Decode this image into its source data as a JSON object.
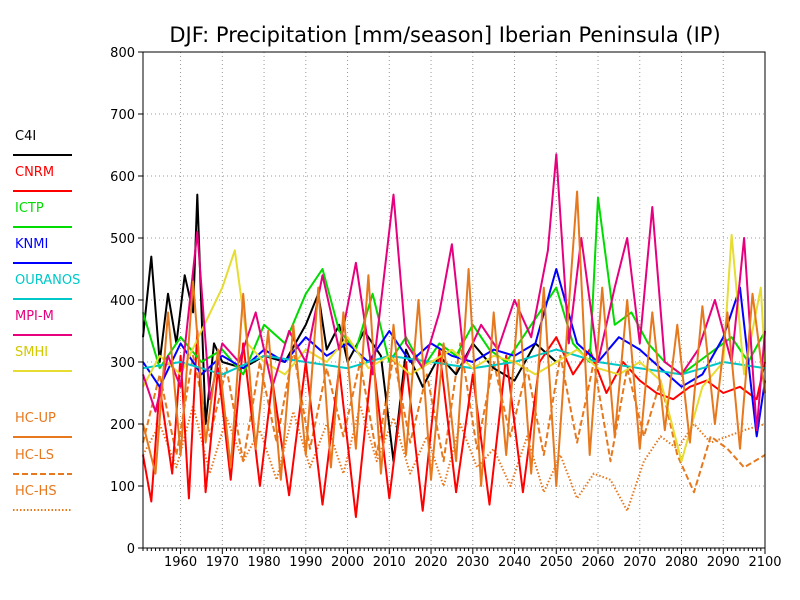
{
  "chart_data": {
    "type": "line",
    "title": "DJF: Precipitation [mm/season] Iberian Peninsula (IP)",
    "xlabel": "",
    "ylabel": "",
    "xlim": [
      1951,
      2100
    ],
    "ylim": [
      0,
      800
    ],
    "x_ticks": [
      1960,
      1970,
      1980,
      1990,
      2000,
      2010,
      2020,
      2030,
      2040,
      2050,
      2060,
      2070,
      2080,
      2090,
      2100
    ],
    "y_ticks": [
      0,
      100,
      200,
      300,
      400,
      500,
      600,
      700,
      800
    ],
    "grid": true,
    "legend_position": "left",
    "series": [
      {
        "name": "C4I",
        "color": "#000000",
        "style": "solid",
        "x": [
          1951,
          1953,
          1955,
          1957,
          1959,
          1961,
          1963,
          1964,
          1966,
          1968,
          1970,
          1975,
          1980,
          1985,
          1990,
          1993,
          1995,
          1998,
          2000,
          2004,
          2008,
          2011,
          2014,
          2018,
          2022,
          2026,
          2030,
          2035,
          2040,
          2045,
          2050
        ],
        "y": [
          340,
          470,
          300,
          410,
          330,
          440,
          380,
          570,
          200,
          330,
          300,
          290,
          310,
          300,
          360,
          410,
          320,
          360,
          300,
          350,
          310,
          140,
          320,
          260,
          310,
          280,
          330,
          290,
          270,
          330,
          300
        ]
      },
      {
        "name": "CNRM",
        "color": "#ff0000",
        "style": "solid",
        "x": [
          1951,
          1953,
          1955,
          1958,
          1960,
          1962,
          1964,
          1966,
          1969,
          1972,
          1975,
          1979,
          1982,
          1986,
          1990,
          1994,
          1998,
          2002,
          2006,
          2010,
          2014,
          2018,
          2022,
          2026,
          2030,
          2034,
          2038,
          2042,
          2046,
          2050,
          2054,
          2058,
          2062,
          2066,
          2070,
          2074,
          2078,
          2082,
          2086,
          2090,
          2094,
          2098,
          2100
        ],
        "y": [
          150,
          75,
          260,
          120,
          310,
          80,
          350,
          90,
          290,
          110,
          330,
          100,
          270,
          85,
          300,
          70,
          290,
          50,
          310,
          80,
          300,
          60,
          320,
          90,
          280,
          70,
          310,
          90,
          300,
          340,
          280,
          320,
          250,
          300,
          270,
          250,
          240,
          260,
          270,
          250,
          260,
          240,
          300
        ]
      },
      {
        "name": "ICTP",
        "color": "#00dc00",
        "style": "solid",
        "x": [
          1951,
          1955,
          1960,
          1965,
          1970,
          1975,
          1980,
          1985,
          1990,
          1994,
          1998,
          2002,
          2006,
          2010,
          2014,
          2018,
          2022,
          2026,
          2030,
          2034,
          2038,
          2042,
          2046,
          2050,
          2054,
          2058,
          2060,
          2064,
          2068,
          2072,
          2076,
          2080,
          2084,
          2088,
          2092,
          2096,
          2100
        ],
        "y": [
          380,
          290,
          340,
          300,
          320,
          280,
          360,
          330,
          410,
          450,
          350,
          320,
          410,
          300,
          340,
          290,
          330,
          310,
          360,
          320,
          300,
          340,
          380,
          420,
          330,
          300,
          565,
          360,
          380,
          330,
          300,
          280,
          300,
          320,
          340,
          300,
          350
        ]
      },
      {
        "name": "KNMI",
        "color": "#0000ff",
        "style": "solid",
        "x": [
          1951,
          1955,
          1960,
          1965,
          1970,
          1975,
          1980,
          1985,
          1990,
          1995,
          2000,
          2005,
          2010,
          2015,
          2020,
          2025,
          2030,
          2035,
          2040,
          2045,
          2050,
          2055,
          2060,
          2065,
          2070,
          2075,
          2080,
          2085,
          2090,
          2094,
          2098,
          2100
        ],
        "y": [
          300,
          260,
          330,
          280,
          310,
          290,
          320,
          300,
          340,
          310,
          330,
          300,
          350,
          300,
          330,
          310,
          300,
          320,
          310,
          330,
          450,
          330,
          300,
          340,
          320,
          290,
          260,
          280,
          340,
          420,
          180,
          270
        ]
      },
      {
        "name": "OURANOS",
        "color": "#00c8c8",
        "style": "solid",
        "x": [
          1951,
          1960,
          1970,
          1980,
          1990,
          2000,
          2010,
          2020,
          2030,
          2040,
          2050,
          2060,
          2070,
          2080,
          2090,
          2100
        ],
        "y": [
          290,
          300,
          280,
          310,
          300,
          290,
          310,
          300,
          290,
          300,
          320,
          300,
          290,
          280,
          300,
          290
        ]
      },
      {
        "name": "MPI-M",
        "color": "#e6007e",
        "style": "solid",
        "x": [
          1951,
          1954,
          1957,
          1960,
          1964,
          1967,
          1970,
          1974,
          1978,
          1982,
          1986,
          1990,
          1994,
          1998,
          2002,
          2006,
          2011,
          2014,
          2018,
          2022,
          2025,
          2028,
          2032,
          2036,
          2040,
          2044,
          2048,
          2050,
          2053,
          2056,
          2060,
          2064,
          2067,
          2070,
          2073,
          2076,
          2080,
          2084,
          2088,
          2092,
          2095,
          2098,
          2100
        ],
        "y": [
          280,
          220,
          310,
          260,
          510,
          240,
          330,
          300,
          380,
          260,
          350,
          300,
          440,
          320,
          460,
          280,
          570,
          330,
          290,
          380,
          490,
          300,
          360,
          320,
          400,
          340,
          480,
          635,
          330,
          500,
          300,
          420,
          500,
          330,
          550,
          300,
          280,
          320,
          400,
          300,
          500,
          190,
          350
        ]
      },
      {
        "name": "SMHI",
        "color": "#e6dc32",
        "style": "solid",
        "x": [
          1951,
          1955,
          1960,
          1965,
          1970,
          1973,
          1976,
          1980,
          1985,
          1990,
          1995,
          2000,
          2005,
          2010,
          2015,
          2020,
          2025,
          2030,
          2035,
          2040,
          2045,
          2050,
          2055,
          2060,
          2065,
          2070,
          2075,
          2080,
          2085,
          2090,
          2092,
          2095,
          2099,
          2100
        ],
        "y": [
          260,
          310,
          280,
          350,
          420,
          480,
          330,
          300,
          280,
          320,
          300,
          340,
          290,
          310,
          280,
          300,
          320,
          290,
          310,
          300,
          280,
          300,
          320,
          290,
          280,
          300,
          270,
          140,
          260,
          300,
          505,
          280,
          420,
          300
        ]
      },
      {
        "name": "HC-UP",
        "color": "#e6781e",
        "style": "solid",
        "x": [
          1951,
          1954,
          1957,
          1960,
          1963,
          1966,
          1969,
          1972,
          1975,
          1978,
          1981,
          1984,
          1987,
          1990,
          1993,
          1996,
          1999,
          2002,
          2005,
          2008,
          2011,
          2014,
          2017,
          2020,
          2023,
          2026,
          2029,
          2032,
          2035,
          2038,
          2041,
          2044,
          2047,
          2050,
          2053,
          2055,
          2058,
          2061,
          2064,
          2067,
          2070,
          2073,
          2076,
          2079,
          2082,
          2085,
          2088,
          2091,
          2094,
          2097,
          2100
        ],
        "y": [
          200,
          120,
          380,
          150,
          430,
          170,
          320,
          130,
          410,
          160,
          350,
          110,
          360,
          150,
          420,
          130,
          380,
          160,
          440,
          120,
          360,
          150,
          400,
          110,
          330,
          140,
          450,
          100,
          380,
          150,
          400,
          120,
          420,
          100,
          390,
          575,
          150,
          420,
          180,
          400,
          160,
          380,
          190,
          360,
          170,
          390,
          200,
          380,
          160,
          410,
          250
        ]
      },
      {
        "name": "HC-LS",
        "color": "#e6781e",
        "style": "dashed",
        "x": [
          1951,
          1955,
          1959,
          1963,
          1967,
          1971,
          1975,
          1979,
          1983,
          1987,
          1991,
          1995,
          1999,
          2003,
          2007,
          2011,
          2015,
          2019,
          2023,
          2027,
          2031,
          2035,
          2039,
          2043,
          2047,
          2051,
          2055,
          2059,
          2063,
          2067,
          2071,
          2075,
          2079,
          2083,
          2087,
          2091,
          2095,
          2100
        ],
        "y": [
          170,
          280,
          150,
          310,
          180,
          290,
          140,
          300,
          170,
          320,
          160,
          290,
          180,
          300,
          150,
          310,
          170,
          280,
          140,
          330,
          160,
          300,
          180,
          290,
          150,
          310,
          170,
          300,
          140,
          290,
          180,
          270,
          150,
          90,
          180,
          160,
          130,
          150
        ]
      },
      {
        "name": "HC-HS",
        "color": "#e6781e",
        "style": "dotted",
        "x": [
          1951,
          1955,
          1959,
          1963,
          1967,
          1971,
          1975,
          1979,
          1983,
          1987,
          1991,
          1995,
          1999,
          2003,
          2007,
          2011,
          2015,
          2019,
          2023,
          2027,
          2031,
          2035,
          2039,
          2043,
          2047,
          2051,
          2055,
          2059,
          2063,
          2067,
          2071,
          2075,
          2079,
          2083,
          2087,
          2091,
          2095,
          2100
        ],
        "y": [
          150,
          200,
          130,
          230,
          120,
          210,
          140,
          190,
          110,
          220,
          130,
          200,
          120,
          230,
          140,
          210,
          120,
          180,
          100,
          200,
          130,
          160,
          100,
          180,
          90,
          150,
          80,
          120,
          110,
          60,
          140,
          180,
          160,
          200,
          170,
          180,
          190,
          200
        ]
      }
    ]
  }
}
